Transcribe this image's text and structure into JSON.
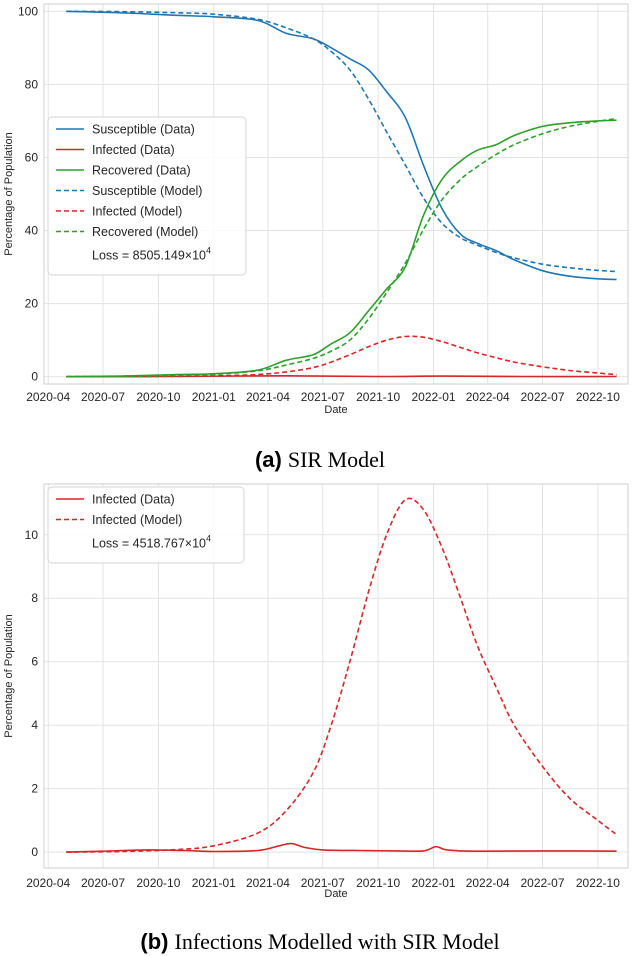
{
  "chart_data": [
    {
      "type": "line",
      "caption_label": "(a)",
      "caption_text": "SIR Model",
      "xlabel": "Date",
      "ylabel": "Percentage of Population",
      "x_ticks": [
        "2020-04",
        "2020-07",
        "2020-10",
        "2021-01",
        "2021-04",
        "2021-07",
        "2021-10",
        "2022-01",
        "2022-04",
        "2022-07",
        "2022-10"
      ],
      "y_ticks": [
        "0",
        "20",
        "40",
        "60",
        "80",
        "100"
      ],
      "ylim": [
        -2,
        102
      ],
      "xlim": [
        "2020-03-25",
        "2022-11-20"
      ],
      "grid": true,
      "legend_position": "center-left",
      "loss_prefix": "Loss = 8505.149",
      "loss_times": "×",
      "loss_base": "10",
      "loss_exp": "4",
      "series": [
        {
          "name": "Susceptible (Data)",
          "style": "solid",
          "color": "#1f77b4",
          "x": [
            "2020-05-01",
            "2020-08-01",
            "2020-11-01",
            "2021-01-01",
            "2021-03-15",
            "2021-05-01",
            "2021-06-15",
            "2021-07-15",
            "2021-08-15",
            "2021-09-15",
            "2021-10-15",
            "2021-11-15",
            "2021-12-15",
            "2022-01-15",
            "2022-02-15",
            "2022-03-15",
            "2022-04-15",
            "2022-05-15",
            "2022-07-01",
            "2022-08-15",
            "2022-10-01",
            "2022-11-01"
          ],
          "y": [
            100,
            99.6,
            98.9,
            98.5,
            97.5,
            94,
            92.5,
            90,
            87,
            84,
            78,
            71,
            58,
            46,
            39,
            36.5,
            34.5,
            32,
            29,
            27.5,
            26.8,
            26.6
          ]
        },
        {
          "name": "Infected (Data)",
          "style": "solid",
          "color": "#d62728",
          "x": [
            "2020-05-01",
            "2020-10-01",
            "2021-05-01",
            "2021-10-01",
            "2022-01-15",
            "2022-06-01",
            "2022-11-01"
          ],
          "y": [
            0,
            0.05,
            0.25,
            0.05,
            0.15,
            0.05,
            0.05
          ]
        },
        {
          "name": "Recovered (Data)",
          "style": "solid",
          "color": "#2ca02c",
          "x": [
            "2020-05-01",
            "2020-08-01",
            "2020-11-01",
            "2021-01-01",
            "2021-03-15",
            "2021-05-01",
            "2021-06-15",
            "2021-07-15",
            "2021-08-15",
            "2021-09-15",
            "2021-10-15",
            "2021-11-15",
            "2021-12-15",
            "2022-01-15",
            "2022-02-15",
            "2022-03-15",
            "2022-04-15",
            "2022-05-15",
            "2022-07-01",
            "2022-08-15",
            "2022-10-01",
            "2022-11-01"
          ],
          "y": [
            0,
            0.2,
            0.6,
            0.8,
            1.8,
            4.5,
            6,
            9,
            12,
            18,
            24,
            30,
            44,
            54,
            59,
            62,
            63.5,
            66,
            68.5,
            69.5,
            70,
            70.2
          ]
        },
        {
          "name": "Susceptible (Model)",
          "style": "dashed",
          "color": "#1f77b4",
          "x": [
            "2020-05-01",
            "2020-08-01",
            "2020-11-01",
            "2021-01-01",
            "2021-03-15",
            "2021-05-01",
            "2021-06-15",
            "2021-07-15",
            "2021-08-15",
            "2021-09-15",
            "2021-10-15",
            "2021-11-15",
            "2021-12-15",
            "2022-01-15",
            "2022-02-15",
            "2022-03-15",
            "2022-04-15",
            "2022-05-15",
            "2022-07-01",
            "2022-08-15",
            "2022-10-01",
            "2022-11-01"
          ],
          "y": [
            100,
            99.9,
            99.6,
            99.2,
            97.8,
            95.5,
            92.5,
            89,
            84,
            76,
            67,
            58,
            49,
            42,
            38,
            36,
            34,
            32.5,
            30.8,
            29.8,
            29.1,
            28.8
          ]
        },
        {
          "name": "Infected (Model)",
          "style": "dashed",
          "color": "#d62728",
          "x": [
            "2020-05-01",
            "2020-08-01",
            "2020-11-01",
            "2021-01-01",
            "2021-03-15",
            "2021-05-01",
            "2021-06-15",
            "2021-07-15",
            "2021-08-15",
            "2021-09-15",
            "2021-10-15",
            "2021-11-15",
            "2021-12-15",
            "2022-01-15",
            "2022-02-15",
            "2022-03-15",
            "2022-04-15",
            "2022-05-15",
            "2022-07-01",
            "2022-08-15",
            "2022-10-01",
            "2022-11-01"
          ],
          "y": [
            0,
            0.02,
            0.08,
            0.2,
            0.6,
            1.3,
            2.5,
            4,
            6,
            8.2,
            10,
            11,
            10.8,
            9.6,
            8,
            6.5,
            5.2,
            4,
            2.7,
            1.7,
            1.0,
            0.55
          ]
        },
        {
          "name": "Recovered (Model)",
          "style": "dashed",
          "color": "#2ca02c",
          "x": [
            "2020-05-01",
            "2020-08-01",
            "2020-11-01",
            "2021-01-01",
            "2021-03-15",
            "2021-05-01",
            "2021-06-15",
            "2021-07-15",
            "2021-08-15",
            "2021-09-15",
            "2021-10-15",
            "2021-11-15",
            "2021-12-15",
            "2022-01-15",
            "2022-02-15",
            "2022-03-15",
            "2022-04-15",
            "2022-05-15",
            "2022-07-01",
            "2022-08-15",
            "2022-10-01",
            "2022-11-01"
          ],
          "y": [
            0,
            0.08,
            0.3,
            0.6,
            1.6,
            3.2,
            5,
            7,
            10,
            15.8,
            23,
            31,
            40.2,
            48.4,
            54,
            57.5,
            60.8,
            63.5,
            66.5,
            68.5,
            69.9,
            70.6
          ]
        }
      ]
    },
    {
      "type": "line",
      "caption_label": "(b)",
      "caption_text": "Infections Modelled with SIR Model",
      "xlabel": "Date",
      "ylabel": "Percentage of Population",
      "x_ticks": [
        "2020-04",
        "2020-07",
        "2020-10",
        "2021-01",
        "2021-04",
        "2021-07",
        "2021-10",
        "2022-01",
        "2022-04",
        "2022-07",
        "2022-10"
      ],
      "y_ticks": [
        "0",
        "2",
        "4",
        "6",
        "8",
        "10"
      ],
      "ylim": [
        -0.5,
        11.6
      ],
      "xlim": [
        "2020-03-25",
        "2022-11-20"
      ],
      "grid": true,
      "legend_position": "top-left",
      "loss_prefix": "Loss = 4518.767",
      "loss_times": "×",
      "loss_base": "10",
      "loss_exp": "4",
      "series": [
        {
          "name": "Infected (Data)",
          "style": "solid",
          "color": "#d62728",
          "x": [
            "2020-05-01",
            "2020-07-01",
            "2020-09-15",
            "2020-11-15",
            "2021-01-01",
            "2021-03-15",
            "2021-04-20",
            "2021-05-10",
            "2021-06-01",
            "2021-07-01",
            "2021-09-01",
            "2021-11-01",
            "2021-12-15",
            "2022-01-05",
            "2022-01-20",
            "2022-02-15",
            "2022-04-01",
            "2022-07-01",
            "2022-11-01"
          ],
          "y": [
            0,
            0.03,
            0.07,
            0.05,
            0.02,
            0.05,
            0.2,
            0.27,
            0.15,
            0.07,
            0.05,
            0.04,
            0.04,
            0.17,
            0.08,
            0.04,
            0.03,
            0.04,
            0.03
          ]
        },
        {
          "name": "Infected (Model)",
          "style": "dashed",
          "color": "#d62728",
          "x": [
            "2020-05-01",
            "2020-08-01",
            "2020-11-01",
            "2021-01-01",
            "2021-03-15",
            "2021-05-01",
            "2021-06-15",
            "2021-07-15",
            "2021-08-15",
            "2021-09-15",
            "2021-10-15",
            "2021-11-15",
            "2021-12-15",
            "2022-01-15",
            "2022-02-15",
            "2022-03-15",
            "2022-04-15",
            "2022-05-15",
            "2022-07-01",
            "2022-08-15",
            "2022-10-01",
            "2022-11-01"
          ],
          "y": [
            0,
            0.02,
            0.08,
            0.2,
            0.6,
            1.3,
            2.5,
            4,
            6,
            8.2,
            10,
            11.1,
            10.8,
            9.6,
            8,
            6.5,
            5.2,
            4,
            2.7,
            1.7,
            1.0,
            0.55
          ]
        }
      ]
    }
  ]
}
